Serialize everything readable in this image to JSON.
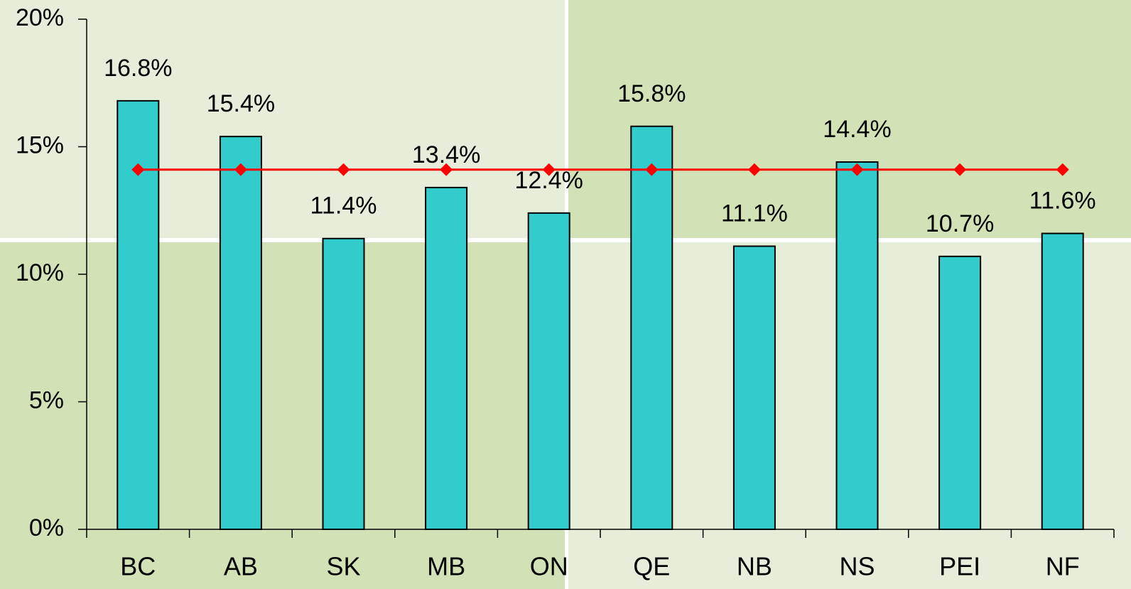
{
  "chart_data": {
    "type": "bar",
    "categories": [
      "BC",
      "AB",
      "SK",
      "MB",
      "ON",
      "QE",
      "NB",
      "NS",
      "PEI",
      "NF"
    ],
    "series": [
      {
        "type": "bar",
        "color": "#33cccc",
        "values": [
          16.8,
          15.4,
          11.4,
          13.4,
          12.4,
          15.8,
          11.1,
          14.4,
          10.7,
          11.6
        ],
        "value_labels": [
          "16.8%",
          "15.4%",
          "11.4%",
          "13.4%",
          "12.4%",
          "15.8%",
          "11.1%",
          "14.4%",
          "10.7%",
          "11.6%"
        ]
      },
      {
        "type": "line",
        "color": "#ff0000",
        "values": [
          14.1,
          14.1,
          14.1,
          14.1,
          14.1,
          14.1,
          14.1,
          14.1,
          14.1,
          14.1
        ]
      }
    ],
    "ylim": [
      0,
      20
    ],
    "yticks": [
      {
        "value": 0,
        "label": "0%"
      },
      {
        "value": 5,
        "label": "5%"
      },
      {
        "value": 10,
        "label": "10%"
      },
      {
        "value": 15,
        "label": "15%"
      },
      {
        "value": 20,
        "label": "20%"
      }
    ]
  }
}
